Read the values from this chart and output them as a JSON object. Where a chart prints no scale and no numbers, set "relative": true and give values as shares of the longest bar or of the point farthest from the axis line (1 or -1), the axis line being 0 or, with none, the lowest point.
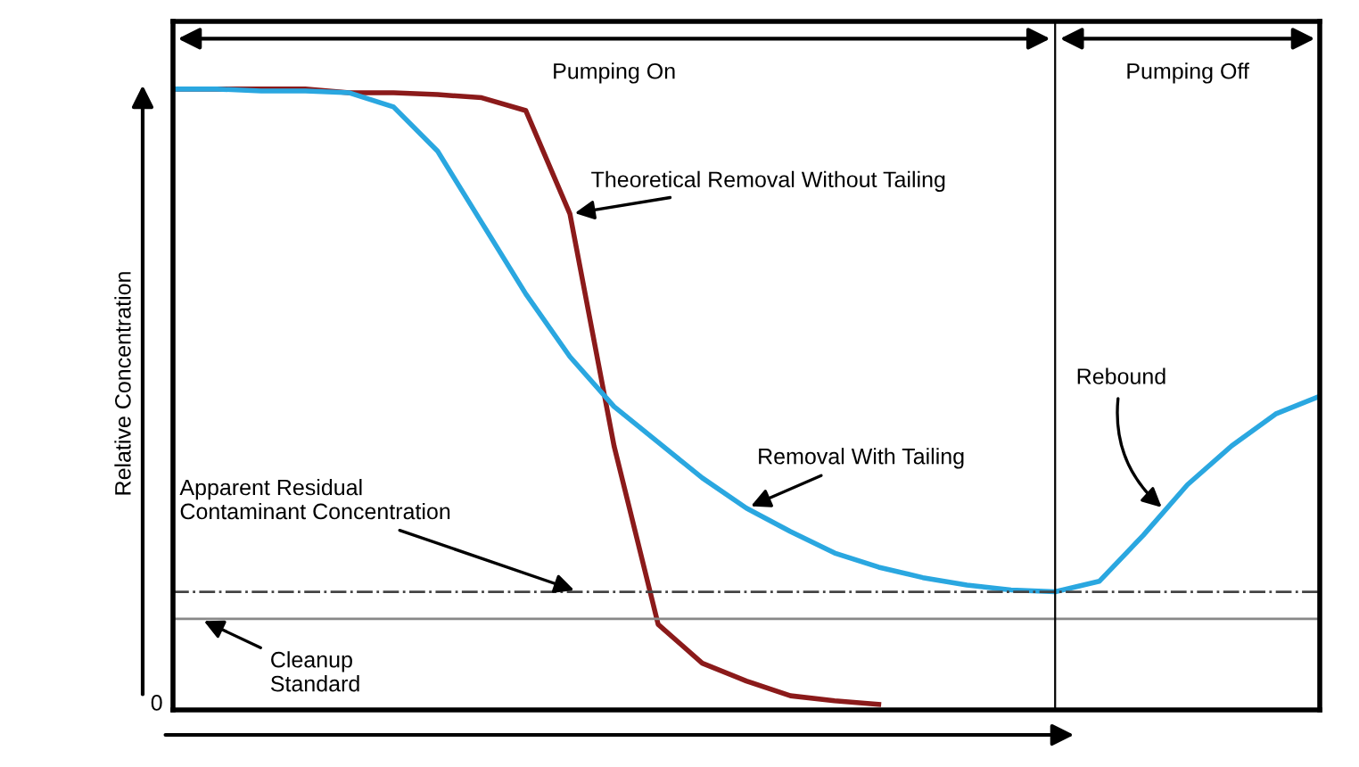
{
  "chart_data": {
    "type": "line",
    "relative": true,
    "ylabel": "Relative Concentration",
    "categories": [
      null,
      null,
      null,
      null,
      null,
      null,
      null,
      null,
      null,
      null,
      null,
      null,
      null,
      null,
      null,
      null,
      null,
      null,
      null,
      null,
      null,
      null,
      null,
      null,
      null,
      null,
      null
    ],
    "series": [
      {
        "name": "Theoretical Removal Without Tailing",
        "color": "#8b1a1a",
        "values": [
          1.0,
          1.0,
          1.0,
          1.0,
          0.994,
          0.994,
          0.991,
          0.986,
          0.965,
          0.797,
          0.42,
          0.13,
          0.067,
          0.038,
          0.014,
          0.006,
          0.0,
          null,
          null,
          null,
          null,
          null,
          null,
          null,
          null,
          null,
          null
        ]
      },
      {
        "name": "Removal With Tailing",
        "color": "#2aa7e0",
        "values": [
          1.0,
          1.0,
          0.997,
          0.997,
          0.994,
          0.971,
          0.899,
          0.783,
          0.667,
          0.565,
          0.484,
          0.426,
          0.368,
          0.319,
          0.281,
          0.246,
          0.223,
          0.206,
          0.194,
          0.186,
          0.183,
          0.2,
          0.275,
          0.357,
          0.42,
          0.472,
          0.501
        ]
      }
    ],
    "ref_lines": [
      {
        "axis": "y",
        "value": 0.183,
        "label": "Apparent Residual Contaminant Concentration",
        "color": "#444444",
        "line_style": "dashdot"
      },
      {
        "axis": "y",
        "value": 0.139,
        "label": "Cleanup Standard",
        "color": "#888888",
        "line_style": "solid"
      }
    ],
    "annotations": [
      "Rebound",
      "0",
      "Pumping On",
      "Pumping Off"
    ],
    "grid": false,
    "legend": false
  }
}
